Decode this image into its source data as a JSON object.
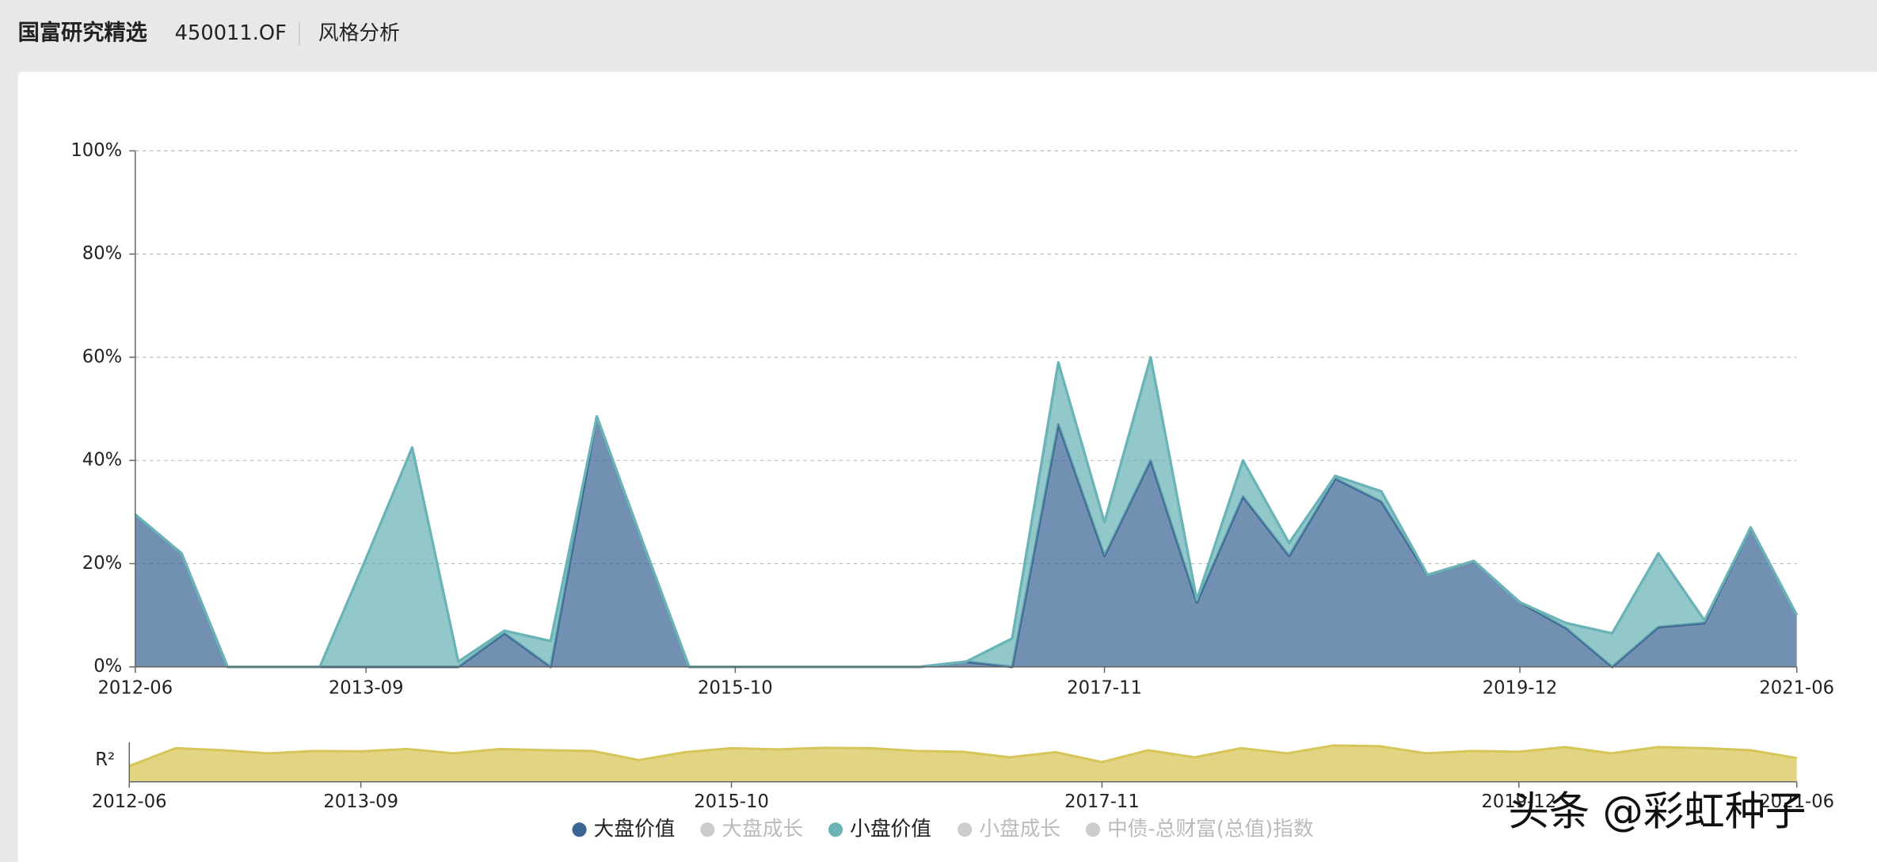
{
  "header": {
    "fund_name": "国富研究精选",
    "fund_code": "450011.OF",
    "tab": "风格分析"
  },
  "chart_data": [
    {
      "type": "stacked_area",
      "categories": [
        "2012-06",
        null,
        null,
        null,
        null,
        "2013-09",
        null,
        null,
        null,
        null,
        null,
        null,
        null,
        "2015-10",
        null,
        null,
        null,
        null,
        null,
        null,
        null,
        "2017-11",
        null,
        null,
        null,
        null,
        null,
        null,
        null,
        null,
        "2019-12",
        null,
        null,
        null,
        null,
        null,
        "2021-06"
      ],
      "series": [
        {
          "name": "大盘价值",
          "color": "#3b6694",
          "visible": true,
          "values": [
            29.5,
            22,
            0,
            0,
            0,
            0,
            0,
            0,
            6.5,
            0,
            48.5,
            24,
            0,
            0,
            0,
            0,
            0,
            0,
            1,
            0,
            47,
            21.5,
            40,
            12.5,
            33,
            21.5,
            36.5,
            32,
            17.8,
            20.5,
            12.5,
            7.5,
            0,
            7.7,
            8.5,
            27,
            10
          ]
        },
        {
          "name": "大盘成长",
          "visible": false
        },
        {
          "name": "小盘价值",
          "color": "#6ab3b6",
          "visible": true,
          "values": [
            0,
            0,
            0,
            0,
            0,
            21,
            42.5,
            1,
            0.5,
            5,
            0,
            0,
            0,
            0,
            0,
            0,
            0,
            0,
            0,
            5.5,
            12,
            6.5,
            20,
            0.5,
            7,
            2.5,
            0.5,
            2,
            0,
            0,
            0,
            1,
            6.5,
            14.3,
            0.5,
            0,
            0
          ]
        },
        {
          "name": "小盘成长",
          "visible": false
        },
        {
          "name": "中债-总财富(总值)指数",
          "visible": false
        }
      ],
      "ylim": [
        0,
        100
      ],
      "yticks": [
        {
          "value": 0,
          "label": "0%"
        },
        {
          "value": 20,
          "label": "20%"
        },
        {
          "value": 40,
          "label": "40%"
        },
        {
          "value": 60,
          "label": "60%"
        },
        {
          "value": 80,
          "label": "80%"
        },
        {
          "value": 100,
          "label": "100%"
        }
      ],
      "grid": true,
      "legend": "bottom"
    },
    {
      "type": "area",
      "y_label": "R²",
      "color": "#d8c55a",
      "categories": [
        "2012-06",
        null,
        null,
        null,
        null,
        "2013-09",
        null,
        null,
        null,
        null,
        null,
        null,
        null,
        "2015-10",
        null,
        null,
        null,
        null,
        null,
        null,
        null,
        "2017-11",
        null,
        null,
        null,
        null,
        null,
        null,
        null,
        null,
        "2019-12",
        null,
        null,
        null,
        null,
        null,
        "2021-06"
      ],
      "values": [
        0.4,
        0.85,
        0.8,
        0.72,
        0.78,
        0.77,
        0.83,
        0.72,
        0.83,
        0.8,
        0.78,
        0.55,
        0.75,
        0.85,
        0.82,
        0.86,
        0.85,
        0.78,
        0.76,
        0.62,
        0.75,
        0.5,
        0.8,
        0.62,
        0.85,
        0.72,
        0.92,
        0.9,
        0.72,
        0.78,
        0.76,
        0.88,
        0.72,
        0.88,
        0.85,
        0.8,
        0.6
      ],
      "ylim": [
        0,
        1
      ]
    }
  ],
  "watermark": "头条 @彩虹种子"
}
